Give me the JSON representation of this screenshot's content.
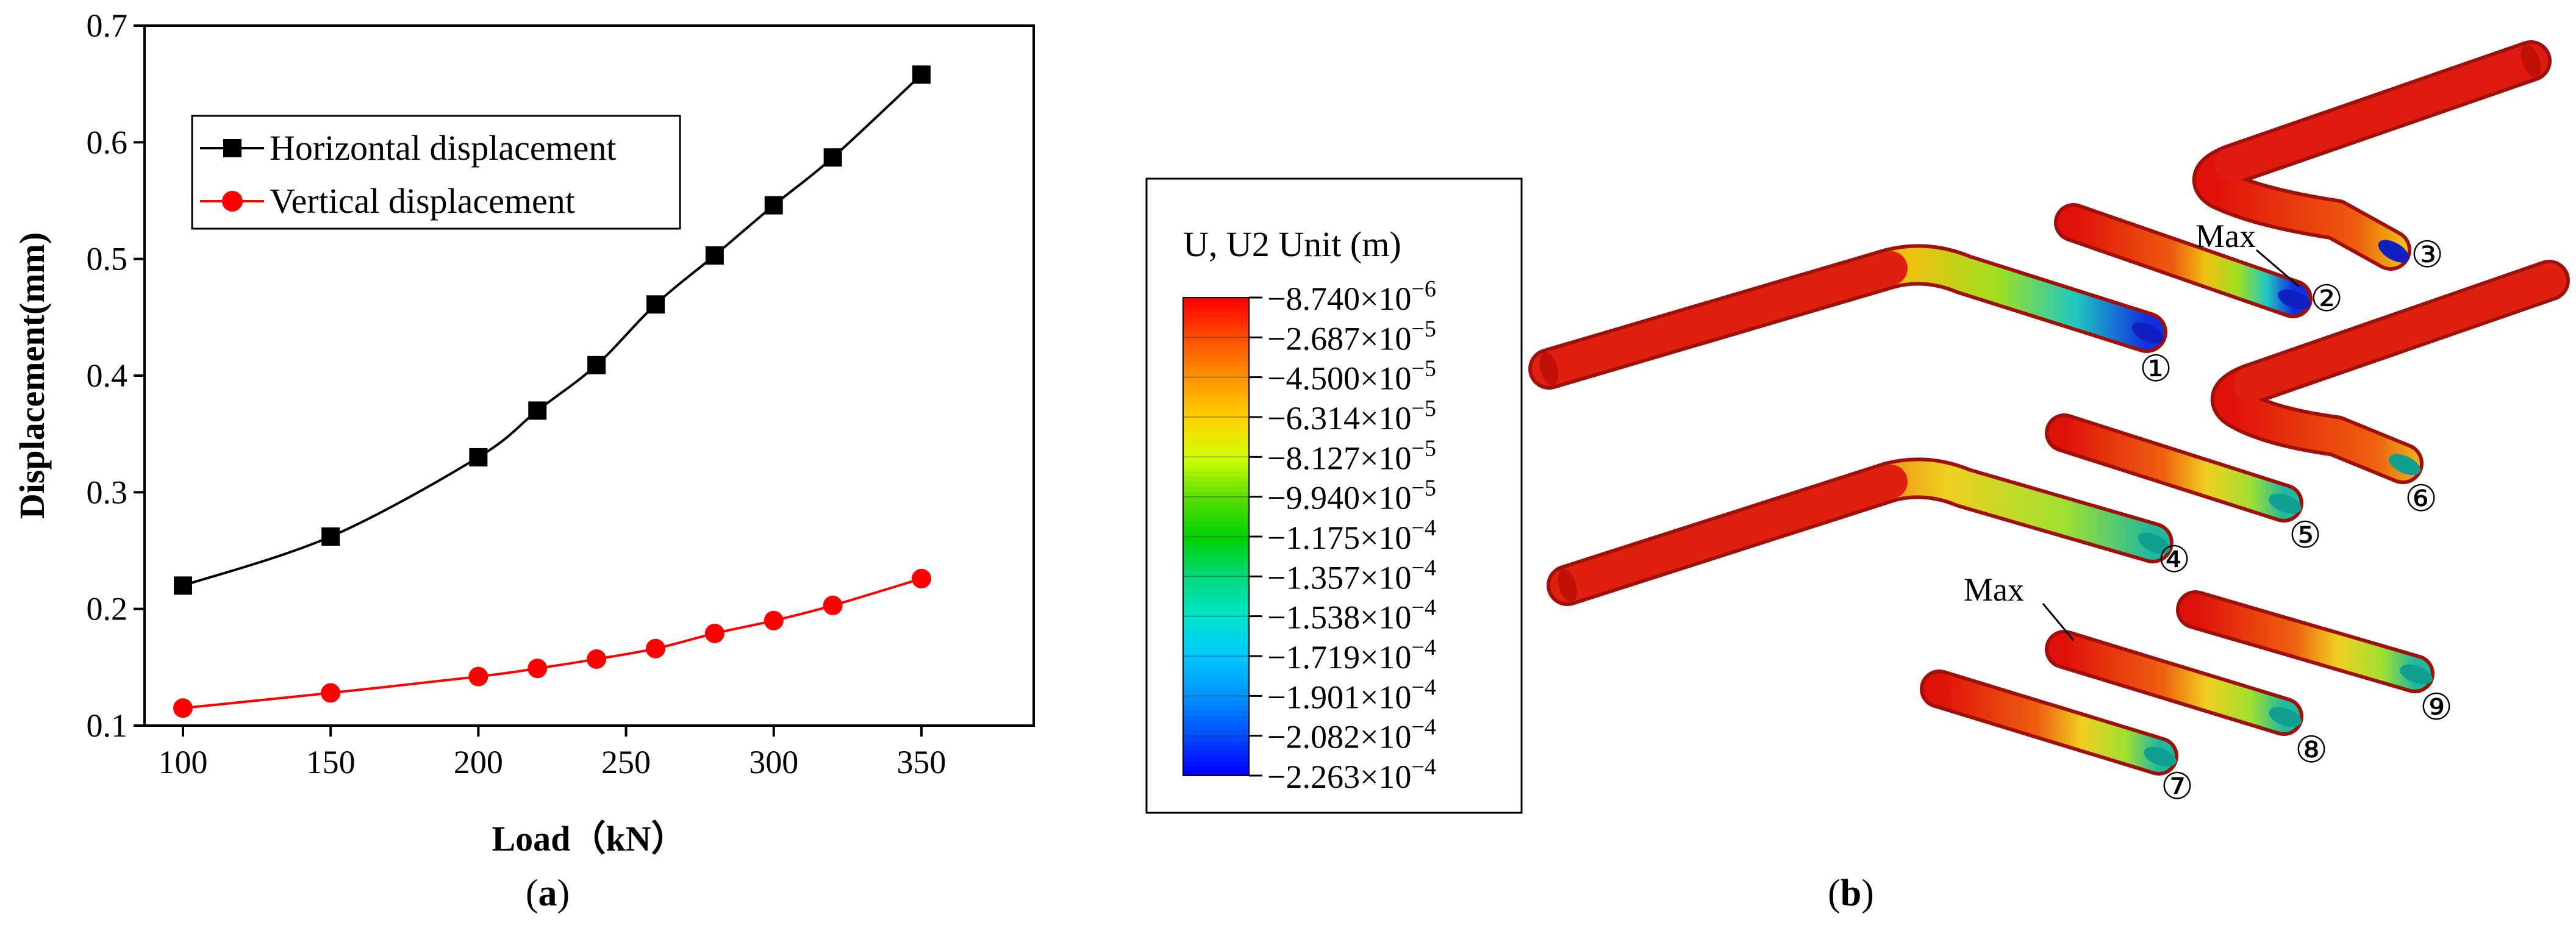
{
  "chart_data": {
    "type": "line",
    "xlabel": "Load（kN）",
    "ylabel": "Displacement(mm)",
    "xlim": [
      87,
      388
    ],
    "ylim": [
      0.1,
      0.7
    ],
    "xticks": [
      "100",
      "150",
      "200",
      "250",
      "300",
      "350"
    ],
    "yticks": [
      "0.1",
      "0.2",
      "0.3",
      "0.4",
      "0.5",
      "0.6",
      "0.7"
    ],
    "legend_position": "top-left",
    "grid": false,
    "series": [
      {
        "name": "Horizontal displacement",
        "color": "#000000",
        "marker": "square",
        "x": [
          100,
          150,
          200,
          220,
          240,
          260,
          280,
          300,
          320,
          350
        ],
        "y": [
          0.22,
          0.262,
          0.33,
          0.37,
          0.409,
          0.461,
          0.503,
          0.546,
          0.587,
          0.658
        ]
      },
      {
        "name": "Vertical displacement",
        "color": "#ff0000",
        "marker": "circle",
        "x": [
          100,
          150,
          200,
          220,
          240,
          260,
          280,
          300,
          320,
          350
        ],
        "y": [
          0.115,
          0.128,
          0.142,
          0.149,
          0.157,
          0.166,
          0.179,
          0.19,
          0.203,
          0.226
        ]
      }
    ]
  },
  "captions": {
    "a": "a",
    "b": "b"
  },
  "contour_legend": {
    "title": "U, U2  Unit (m)",
    "labels": [
      "−8.740×10",
      "−2.687×10",
      "−4.500×10",
      "−6.314×10",
      "−8.127×10",
      "−9.940×10",
      "−1.175×10",
      "−1.357×10",
      "−1.538×10",
      "−1.719×10",
      "−1.901×10",
      "−2.082×10",
      "−2.263×10"
    ],
    "exponents": [
      "−6",
      "−5",
      "−5",
      "−5",
      "−5",
      "−5",
      "−4",
      "−4",
      "−4",
      "−4",
      "−4",
      "−4",
      "−4"
    ],
    "colors": [
      "#ff0000",
      "#ff5000",
      "#ff9600",
      "#ffd200",
      "#d2ff00",
      "#5ade00",
      "#00d200",
      "#00d878",
      "#00e6c8",
      "#00c8ff",
      "#0096ff",
      "#0050ff",
      "#0000ff"
    ]
  },
  "pipes": {
    "labels": [
      "①",
      "②",
      "③",
      "④",
      "⑤",
      "⑥",
      "⑦",
      "⑧",
      "⑨"
    ],
    "max_label": "Max"
  }
}
